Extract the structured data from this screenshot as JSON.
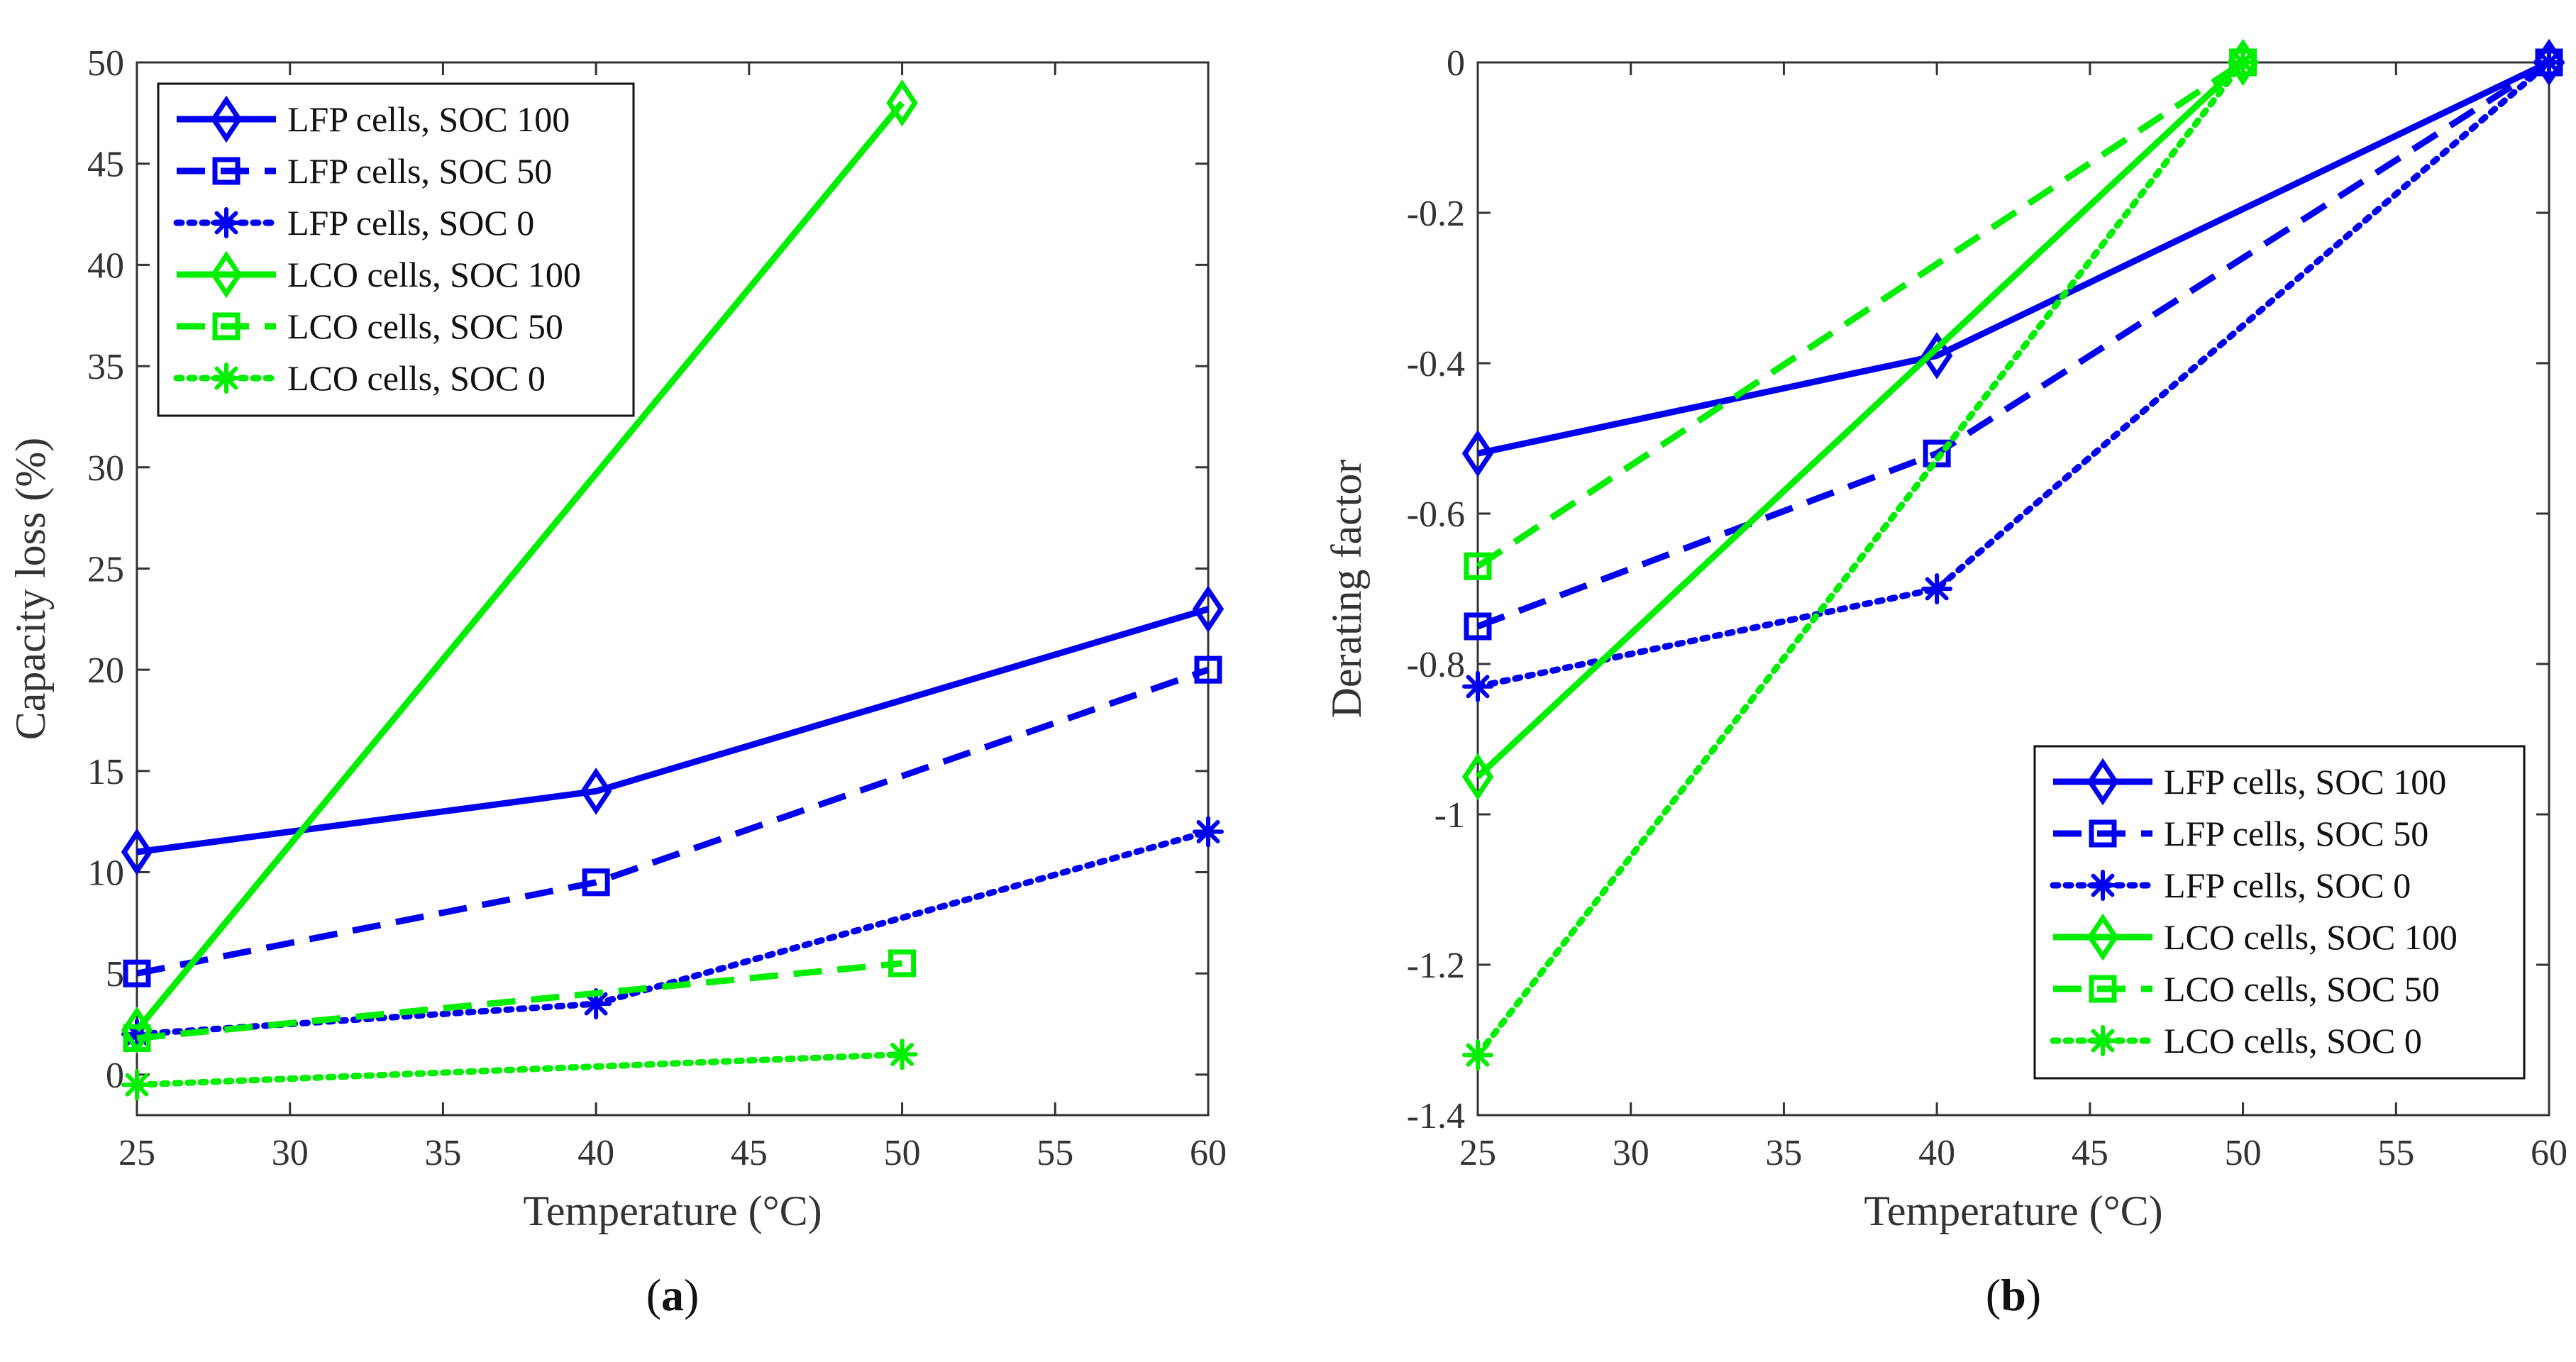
{
  "chart_data": [
    {
      "id": "a",
      "type": "line",
      "panel_label": "a",
      "title": "",
      "xlabel": "Temperature (°C)",
      "ylabel": "Capacity loss (%)",
      "xlim": [
        25,
        60
      ],
      "ylim": [
        -2,
        50
      ],
      "xticks": [
        25,
        30,
        35,
        40,
        45,
        50,
        55,
        60
      ],
      "yticks": [
        0,
        5,
        10,
        15,
        20,
        25,
        30,
        35,
        40,
        45,
        50
      ],
      "legend": "top-left",
      "grid": false,
      "series": [
        {
          "name": "LFP cells, SOC 100",
          "color": "#0000ee",
          "dash": "solid",
          "marker": "diamond",
          "points": [
            [
              25,
              11
            ],
            [
              40,
              14
            ],
            [
              60,
              23
            ]
          ]
        },
        {
          "name": "LFP cells, SOC 50",
          "color": "#0000ee",
          "dash": "dashed",
          "marker": "square",
          "points": [
            [
              25,
              5
            ],
            [
              40,
              9.5
            ],
            [
              60,
              20
            ]
          ]
        },
        {
          "name": "LFP cells, SOC 0",
          "color": "#0000ee",
          "dash": "dotted",
          "marker": "asterisk",
          "points": [
            [
              25,
              2
            ],
            [
              40,
              3.5
            ],
            [
              60,
              12
            ]
          ]
        },
        {
          "name": "LCO cells, SOC 100",
          "color": "#00ee00",
          "dash": "solid",
          "marker": "diamond",
          "points": [
            [
              25,
              2.2
            ],
            [
              50,
              48
            ]
          ]
        },
        {
          "name": "LCO cells, SOC 50",
          "color": "#00ee00",
          "dash": "dashed",
          "marker": "square",
          "points": [
            [
              25,
              1.8
            ],
            [
              50,
              5.5
            ]
          ]
        },
        {
          "name": "LCO cells, SOC 0",
          "color": "#00ee00",
          "dash": "dotted",
          "marker": "asterisk",
          "points": [
            [
              25,
              -0.5
            ],
            [
              50,
              1
            ]
          ]
        }
      ]
    },
    {
      "id": "b",
      "type": "line",
      "panel_label": "b",
      "title": "",
      "xlabel": "Temperature (°C)",
      "ylabel": "Derating factor",
      "xlim": [
        25,
        60
      ],
      "ylim": [
        -1.4,
        0
      ],
      "xticks": [
        25,
        30,
        35,
        40,
        45,
        50,
        55,
        60
      ],
      "yticks": [
        0,
        -0.2,
        -0.4,
        -0.6,
        -0.8,
        -1,
        -1.2,
        -1.4
      ],
      "legend": "bottom-right",
      "grid": false,
      "series": [
        {
          "name": "LFP cells, SOC 100",
          "color": "#0000ee",
          "dash": "solid",
          "marker": "diamond",
          "points": [
            [
              25,
              -0.52
            ],
            [
              40,
              -0.39
            ],
            [
              60,
              0
            ]
          ]
        },
        {
          "name": "LFP cells, SOC 50",
          "color": "#0000ee",
          "dash": "dashed",
          "marker": "square",
          "points": [
            [
              25,
              -0.75
            ],
            [
              40,
              -0.52
            ],
            [
              60,
              0
            ]
          ]
        },
        {
          "name": "LFP cells, SOC 0",
          "color": "#0000ee",
          "dash": "dotted",
          "marker": "asterisk",
          "points": [
            [
              25,
              -0.83
            ],
            [
              40,
              -0.7
            ],
            [
              60,
              0
            ]
          ]
        },
        {
          "name": "LCO cells, SOC 100",
          "color": "#00ee00",
          "dash": "solid",
          "marker": "diamond",
          "points": [
            [
              25,
              -0.95
            ],
            [
              50,
              0
            ]
          ]
        },
        {
          "name": "LCO cells, SOC 50",
          "color": "#00ee00",
          "dash": "dashed",
          "marker": "square",
          "points": [
            [
              25,
              -0.67
            ],
            [
              50,
              0
            ]
          ]
        },
        {
          "name": "LCO cells, SOC 0",
          "color": "#00ee00",
          "dash": "dotted",
          "marker": "asterisk",
          "points": [
            [
              25,
              -1.32
            ],
            [
              50,
              0
            ]
          ]
        }
      ]
    }
  ]
}
